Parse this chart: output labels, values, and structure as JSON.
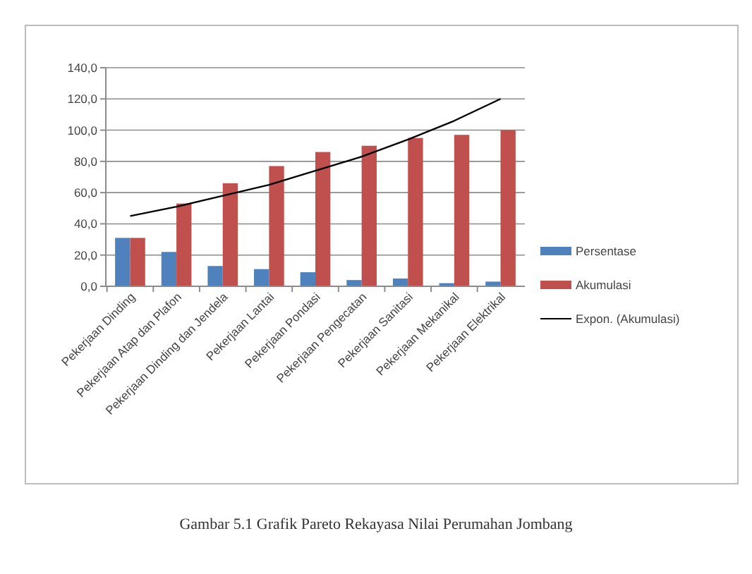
{
  "chart_data": {
    "type": "bar",
    "categories": [
      "Pekerjaan Dinding",
      "Pekerjaan Atap dan Plafon",
      "Pekerjaan Dinding dan Jendela",
      "Pekerjaan Lantai",
      "Pekerjaan Pondasi",
      "Pekerjaan Pengecatan",
      "Pekerjaan Sanitasi",
      "Pekerjaan Mekanikal",
      "Pekerjaan Elektrikal"
    ],
    "series": [
      {
        "name": "Persentase",
        "color": "#4f81bd",
        "values": [
          31,
          22,
          13,
          11,
          9,
          4,
          5,
          2,
          3
        ]
      },
      {
        "name": "Akumulasi",
        "color": "#c0504d",
        "values": [
          31,
          53,
          66,
          77,
          86,
          90,
          95,
          97,
          100
        ]
      },
      {
        "name": "Expon. (Akumulasi)",
        "type": "line",
        "color": "#000000",
        "values": [
          45,
          51,
          58,
          65,
          74,
          83,
          94,
          106,
          120
        ]
      }
    ],
    "ylim": [
      0,
      140
    ],
    "yticks": [
      {
        "value": 0,
        "label": "0,0"
      },
      {
        "value": 20,
        "label": "20,0"
      },
      {
        "value": 40,
        "label": "40,0"
      },
      {
        "value": 60,
        "label": "60,0"
      },
      {
        "value": 80,
        "label": "80,0"
      },
      {
        "value": 100,
        "label": "100,0"
      },
      {
        "value": 120,
        "label": "120,0"
      },
      {
        "value": 140,
        "label": "140,0"
      }
    ],
    "grid": "y",
    "legend": "right",
    "marker": "none",
    "annotations": [
      "Gambar 5.1 Grafik Pareto Rekayasa Nilai Perumahan Jombang"
    ]
  }
}
